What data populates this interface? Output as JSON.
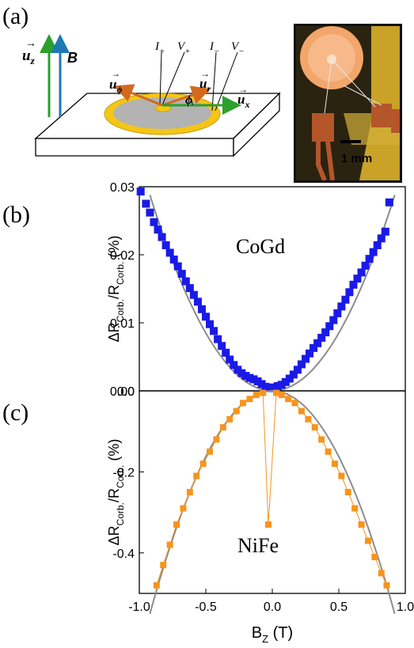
{
  "panel_labels": {
    "a": "(a)",
    "b": "(b)",
    "c": "(c)"
  },
  "schematic": {
    "uz": "u",
    "uz_sub": "z",
    "B": "B",
    "I_plus": "I",
    "I_plus_sub": "+",
    "V_plus": "V",
    "V_plus_sub": "+",
    "I_minus": "I",
    "I_minus_sub": "−",
    "V_minus": "V",
    "V_minus_sub": "−",
    "u_phi": "u",
    "u_phi_sub": "ϕ",
    "u_r": "u",
    "u_r_sub": "r",
    "phi": "ϕ",
    "u_x": "u",
    "u_x_sub": "x"
  },
  "photo": {
    "scale_label": "1 mm"
  },
  "colors": {
    "cogd": "#1a1ae6",
    "nife": "#f7941d",
    "fit": "#8c8c8c",
    "green": "#2ca02c",
    "blue": "#1f77b4",
    "orange": "#d2691e",
    "ring": "#f5c518",
    "disk": "#b3b3b3"
  },
  "chart_data": [
    {
      "type": "scatter",
      "title": "",
      "annotation": "CoGd",
      "xlabel": "",
      "ylabel_main": "ΔR",
      "ylabel_sub": "Corb.",
      "ylabel_den": "/R",
      "ylabel_den_sub": "Corb.",
      "ylabel_unit": "(%)",
      "xlim": [
        -1.0,
        1.0
      ],
      "ylim": [
        0,
        0.03
      ],
      "yticks": [
        "0.00",
        "0.01",
        "0.02",
        "0.03"
      ],
      "series": [
        {
          "x": [
            -0.99,
            -0.95,
            -0.92,
            -0.89,
            -0.86,
            -0.83,
            -0.8,
            -0.77,
            -0.74,
            -0.71,
            -0.68,
            -0.65,
            -0.62,
            -0.59,
            -0.56,
            -0.53,
            -0.5,
            -0.47,
            -0.44,
            -0.41,
            -0.38,
            -0.35,
            -0.32,
            -0.29,
            -0.26,
            -0.23,
            -0.2,
            -0.17,
            -0.14,
            -0.11,
            -0.08,
            -0.05,
            -0.02,
            0.01,
            0.04,
            0.07,
            0.1,
            0.13,
            0.16,
            0.19,
            0.22,
            0.25,
            0.28,
            0.31,
            0.34,
            0.37,
            0.4,
            0.43,
            0.46,
            0.49,
            0.52,
            0.55,
            0.58,
            0.61,
            0.64,
            0.67,
            0.7,
            0.73,
            0.76,
            0.79,
            0.82,
            0.85,
            0.88
          ],
          "y": [
            0.0293,
            0.0275,
            0.0262,
            0.0248,
            0.0237,
            0.0226,
            0.0214,
            0.0203,
            0.0193,
            0.0183,
            0.0172,
            0.0161,
            0.0151,
            0.0141,
            0.0131,
            0.012,
            0.0109,
            0.0098,
            0.0088,
            0.0076,
            0.0066,
            0.0056,
            0.0046,
            0.0038,
            0.0031,
            0.0026,
            0.0022,
            0.0019,
            0.0017,
            0.0014,
            0.001,
            0.0006,
            0.0004,
            0.0005,
            0.0007,
            0.0009,
            0.0013,
            0.0018,
            0.0024,
            0.0031,
            0.0039,
            0.0047,
            0.0055,
            0.0063,
            0.007,
            0.0078,
            0.0086,
            0.0095,
            0.0104,
            0.0114,
            0.0124,
            0.0134,
            0.0145,
            0.0156,
            0.0165,
            0.0174,
            0.0184,
            0.0194,
            0.0204,
            0.0214,
            0.0224,
            0.0234,
            0.0277
          ]
        }
      ],
      "fit_coeff": 0.034
    },
    {
      "type": "scatter",
      "title": "",
      "annotation": "NiFe",
      "xlabel_main": "B",
      "xlabel_sub": "Z",
      "xlabel_unit": "(T)",
      "ylabel_main": "ΔR",
      "ylabel_sub": "Corb.",
      "ylabel_den": "/R",
      "ylabel_den_sub": "Corb.",
      "ylabel_unit": "(%)",
      "xlim": [
        -1.0,
        1.0
      ],
      "ylim": [
        -0.5,
        0
      ],
      "xticks": [
        "-1.0",
        "-0.5",
        "0.0",
        "0.5",
        "1.0"
      ],
      "yticks": [
        "-0.4",
        "-0.2",
        "0.0"
      ],
      "series": [
        {
          "x": [
            -0.87,
            -0.82,
            -0.77,
            -0.72,
            -0.67,
            -0.62,
            -0.57,
            -0.52,
            -0.47,
            -0.42,
            -0.37,
            -0.32,
            -0.27,
            -0.22,
            -0.17,
            -0.12,
            -0.07,
            -0.03,
            0.03,
            0.07,
            0.12,
            0.17,
            0.22,
            0.27,
            0.32,
            0.37,
            0.42,
            0.47,
            0.52,
            0.57,
            0.62,
            0.67,
            0.72,
            0.77,
            0.82,
            0.86
          ],
          "y": [
            -0.48,
            -0.43,
            -0.38,
            -0.33,
            -0.29,
            -0.25,
            -0.21,
            -0.18,
            -0.15,
            -0.12,
            -0.09,
            -0.07,
            -0.05,
            -0.03,
            -0.02,
            -0.01,
            -0.005,
            -0.33,
            -0.005,
            -0.01,
            -0.02,
            -0.03,
            -0.05,
            -0.07,
            -0.09,
            -0.12,
            -0.15,
            -0.18,
            -0.21,
            -0.25,
            -0.29,
            -0.33,
            -0.37,
            -0.41,
            -0.45,
            -0.48
          ]
        }
      ],
      "fit_coeff": -0.65
    }
  ]
}
